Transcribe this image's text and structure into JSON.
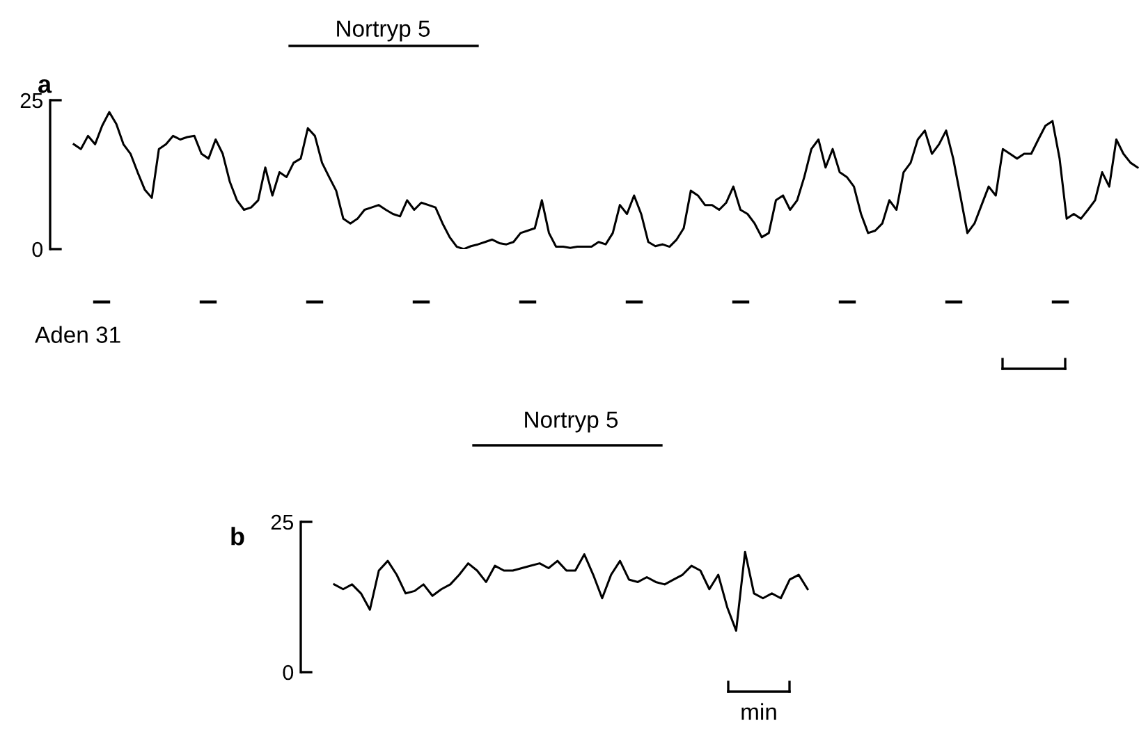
{
  "chart_data": [
    {
      "type": "line",
      "title": "a",
      "annotations": [
        "Nortryp 5",
        "Aden 31"
      ],
      "tick_labels": "y",
      "ylim": [
        0,
        25
      ],
      "yticks": [
        0,
        25
      ],
      "categories": [
        null,
        null,
        null,
        null,
        null,
        null,
        null,
        null,
        null,
        null,
        null,
        null,
        null,
        null,
        null,
        null,
        null,
        null,
        null,
        null,
        null,
        null,
        null,
        null,
        null,
        null,
        null,
        null,
        null,
        null,
        null,
        null,
        null,
        null,
        null,
        null,
        null,
        null,
        null,
        null,
        null,
        null,
        null,
        null,
        null,
        null,
        null,
        null,
        null,
        null,
        null,
        null,
        null,
        null,
        null,
        null,
        null,
        null,
        null,
        null,
        null,
        null,
        null,
        null,
        null,
        null,
        null,
        null,
        null,
        null,
        null,
        null,
        null,
        null,
        null,
        null,
        null,
        null,
        null,
        null,
        null,
        null,
        null,
        null,
        null,
        null,
        null,
        null,
        null,
        null,
        null,
        null,
        null,
        null,
        null,
        null,
        null,
        null,
        null,
        null,
        null,
        null,
        null,
        null,
        null,
        null,
        null,
        null,
        null,
        null,
        null,
        null,
        null,
        null,
        null,
        null,
        null,
        null,
        null,
        null,
        null,
        null,
        null,
        null,
        null,
        null,
        null,
        null,
        null,
        null,
        null,
        null,
        null,
        null,
        null,
        null,
        null,
        null,
        null,
        null,
        null,
        null,
        null,
        null,
        null,
        null,
        null,
        null,
        null,
        null,
        null
      ],
      "series": [
        {
          "color": "#000000",
          "values": [
            17.6,
            16.8,
            19,
            17.6,
            20.7,
            23,
            21,
            17.6,
            16,
            12.9,
            10,
            8.6,
            16.8,
            17.6,
            19,
            18.4,
            18.8,
            19,
            16,
            15.2,
            18.4,
            16,
            11.3,
            8.2,
            6.6,
            7,
            8.2,
            13.7,
            9,
            12.9,
            12.1,
            14.5,
            15.2,
            20.3,
            19,
            14.5,
            12.1,
            9.8,
            5.1,
            4.3,
            5.1,
            6.6,
            7,
            7.4,
            6.6,
            5.9,
            5.5,
            8.2,
            6.6,
            7.8,
            7.4,
            7,
            4.3,
            2,
            0.4,
            0,
            0.5,
            0.8,
            1.2,
            1.6,
            1,
            0.8,
            1.2,
            2.7,
            3.1,
            3.5,
            8.2,
            2.7,
            0.4,
            0.4,
            0.2,
            0.4,
            0.4,
            0.4,
            1.2,
            0.8,
            2.7,
            7.4,
            5.9,
            9,
            5.9,
            1.2,
            0.5,
            0.8,
            0.4,
            1.6,
            3.5,
            9.8,
            9,
            7.4,
            7.4,
            6.6,
            7.8,
            10.5,
            6.6,
            5.9,
            4.3,
            2,
            2.7,
            8.2,
            9,
            6.6,
            8.2,
            12.1,
            16.8,
            18.4,
            13.7,
            16.8,
            12.9,
            12.1,
            10.5,
            5.9,
            2.7,
            3.1,
            4.3,
            8.2,
            6.6,
            12.9,
            14.5,
            18.4,
            19.9,
            16,
            17.6,
            19.9,
            15.2,
            9,
            2.7,
            4.3,
            7.4,
            10.5,
            9,
            16.8,
            16,
            15.2,
            16,
            16,
            18.4,
            20.7,
            21.5,
            15.2,
            5.1,
            5.9,
            5.1,
            6.6,
            8.2,
            12.9,
            10.5,
            18.4,
            16,
            14.5,
            13.7
          ]
        }
      ]
    },
    {
      "type": "line",
      "title": "b",
      "annotations": [
        "Nortryp 5",
        "min"
      ],
      "tick_labels": "y",
      "ylim": [
        0,
        25
      ],
      "yticks": [
        0,
        25
      ],
      "categories": [
        null,
        null,
        null,
        null,
        null,
        null,
        null,
        null,
        null,
        null,
        null,
        null,
        null,
        null,
        null,
        null,
        null,
        null,
        null,
        null,
        null,
        null,
        null,
        null,
        null,
        null,
        null,
        null,
        null,
        null,
        null,
        null,
        null,
        null,
        null,
        null,
        null,
        null,
        null,
        null,
        null,
        null,
        null,
        null,
        null,
        null,
        null,
        null,
        null,
        null,
        null,
        null,
        null,
        null
      ],
      "series": [
        {
          "color": "#000000",
          "values": [
            14.6,
            13.8,
            14.6,
            13.1,
            10.4,
            16.9,
            18.5,
            16.2,
            13.1,
            13.5,
            14.6,
            12.7,
            13.8,
            14.6,
            16.2,
            18.1,
            16.9,
            15,
            17.7,
            16.9,
            16.9,
            17.3,
            17.7,
            18.1,
            17.3,
            18.5,
            16.9,
            16.9,
            19.6,
            16.2,
            12.3,
            16.2,
            18.5,
            15.4,
            15,
            15.8,
            15,
            14.6,
            15.4,
            16.2,
            17.7,
            16.9,
            13.8,
            16.2,
            10.8,
            6.9,
            20,
            13.1,
            12.3,
            13.1,
            12.3,
            15.4,
            16.2,
            13.8
          ]
        }
      ]
    }
  ]
}
